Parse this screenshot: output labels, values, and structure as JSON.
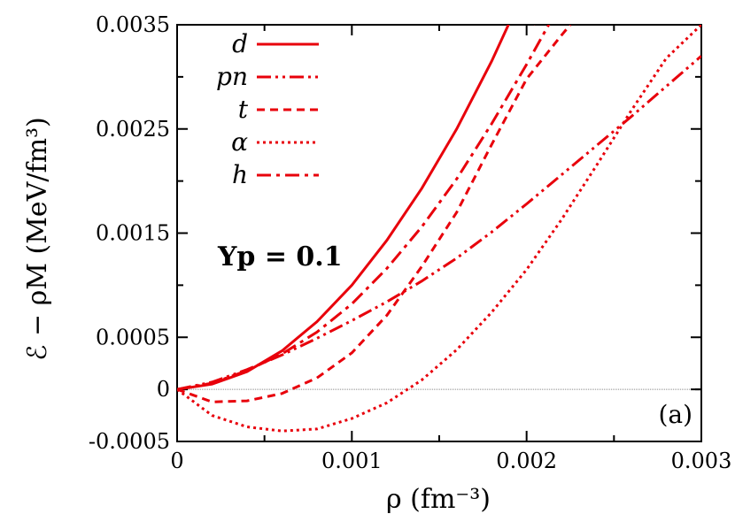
{
  "chart_data": {
    "type": "line",
    "xlabel": "ρ (fm⁻³)",
    "ylabel": "ℰ − ρM (MeV/fm³)",
    "xlim": [
      0,
      0.003
    ],
    "ylim": [
      -0.0005,
      0.0035
    ],
    "x_ticks": [
      "0",
      "0.001",
      "0.002",
      "0.003"
    ],
    "x_tick_values": [
      0,
      0.001,
      0.002,
      0.003
    ],
    "y_ticks": [
      "0.0035",
      "0.0025",
      "0.0015",
      "0.0005",
      "0",
      "-0.0005"
    ],
    "y_tick_values": [
      0.0035,
      0.0025,
      0.0015,
      0.0005,
      0,
      -0.0005
    ],
    "annotation": "Yp = 0.1",
    "panel_label": "(a)",
    "legend_position": "top-left",
    "zero_line": true,
    "color": "#e8000b",
    "series": [
      {
        "name": "d",
        "dash": "solid",
        "x": [
          0,
          0.0002,
          0.0004,
          0.0006,
          0.0008,
          0.001,
          0.0012,
          0.0014,
          0.0016,
          0.0018,
          0.002,
          0.00205
        ],
        "y": [
          0,
          5e-05,
          0.00017,
          0.00037,
          0.00065,
          0.001,
          0.00143,
          0.00193,
          0.0025,
          0.00315,
          0.00388,
          0.0035
        ]
      },
      {
        "name": "pn",
        "dash": "dash-dot-dot",
        "x": [
          0,
          0.0002,
          0.0004,
          0.0006,
          0.0008,
          0.001,
          0.0012,
          0.0014,
          0.0016,
          0.0018,
          0.002,
          0.0022,
          0.0024,
          0.0026,
          0.0028,
          0.003
        ],
        "y": [
          0,
          7e-05,
          0.00019,
          0.00033,
          0.00049,
          0.00066,
          0.00084,
          0.00104,
          0.00126,
          0.00151,
          0.00178,
          0.00206,
          0.00234,
          0.00262,
          0.00291,
          0.0032
        ]
      },
      {
        "name": "t",
        "dash": "short-dash",
        "x": [
          0,
          0.0002,
          0.0004,
          0.0006,
          0.0008,
          0.001,
          0.0012,
          0.0014,
          0.0016,
          0.0018,
          0.002,
          0.0022,
          0.00225
        ],
        "y": [
          0,
          -0.00012,
          -0.00011,
          -4e-05,
          0.00011,
          0.00035,
          0.00071,
          0.00118,
          0.0017,
          0.00235,
          0.00298,
          0.0034,
          0.0035
        ]
      },
      {
        "name": "α",
        "dash": "dotted",
        "x": [
          0,
          0.0002,
          0.0004,
          0.0006,
          0.0008,
          0.001,
          0.0012,
          0.0014,
          0.0016,
          0.0018,
          0.002,
          0.0022,
          0.0024,
          0.0026,
          0.0028,
          0.003
        ],
        "y": [
          0,
          -0.00025,
          -0.00036,
          -0.0004,
          -0.00038,
          -0.00028,
          -0.00013,
          9e-05,
          0.00038,
          0.00074,
          0.00115,
          0.00163,
          0.00215,
          0.00268,
          0.00318,
          0.0035
        ]
      },
      {
        "name": "h",
        "dash": "dash-dot",
        "x": [
          0,
          0.0002,
          0.0004,
          0.0006,
          0.0008,
          0.001,
          0.0012,
          0.0014,
          0.0016,
          0.0018,
          0.002,
          0.0022,
          0.00227
        ],
        "y": [
          0,
          6e-05,
          0.00018,
          0.00034,
          0.00055,
          0.00082,
          0.00116,
          0.00156,
          0.00202,
          0.00255,
          0.00312,
          0.00372,
          0.0035
        ]
      }
    ]
  }
}
